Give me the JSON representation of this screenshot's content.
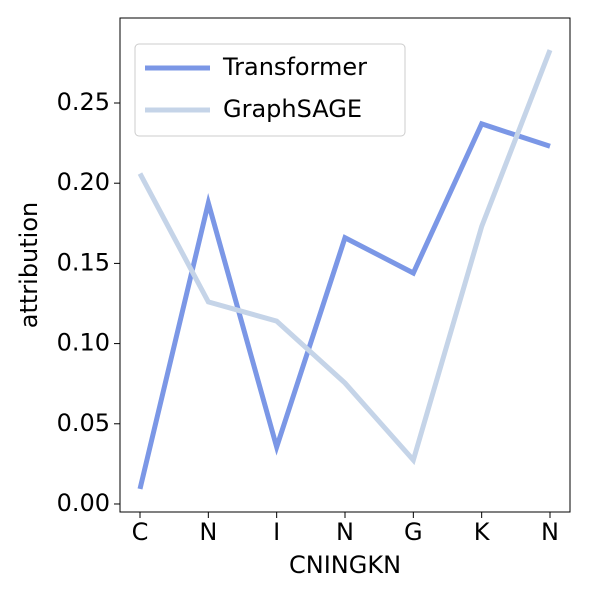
{
  "chart_data": {
    "type": "line",
    "categories": [
      "C",
      "N",
      "I",
      "N",
      "G",
      "K",
      "N"
    ],
    "x_label": "CNINGKN",
    "y_label": "attribution",
    "series": [
      {
        "name": "Transformer",
        "color": "#7b97e6",
        "values": [
          0.0094,
          0.1877,
          0.0355,
          0.166,
          0.144,
          0.237,
          0.223
        ]
      },
      {
        "name": "GraphSAGE",
        "color": "#c5d4e8",
        "values": [
          0.206,
          0.126,
          0.114,
          0.0754,
          0.0274,
          0.173,
          0.283
        ]
      }
    ],
    "ylim": [
      -0.005,
      0.303
    ],
    "yticks": [
      {
        "value": 0,
        "label": "0.00"
      },
      0.05,
      {
        "value": 0.1,
        "label": "0.10"
      },
      0.15,
      {
        "value": 0.2,
        "label": "0.20"
      },
      0.25
    ],
    "grid": false,
    "legend": "upper left"
  }
}
